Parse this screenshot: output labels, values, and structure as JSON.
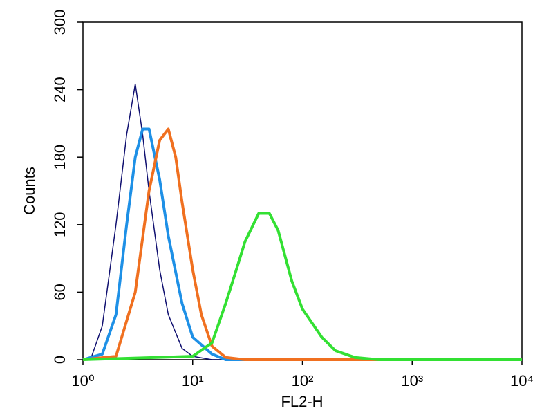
{
  "chart_data": {
    "type": "line",
    "x_label": "FL2-H",
    "y_label": "Counts",
    "log_x": true,
    "xlim": [
      1,
      10000
    ],
    "xticks": [
      {
        "value": 1,
        "label": "10⁰"
      },
      {
        "value": 10,
        "label": "10¹"
      },
      {
        "value": 100,
        "label": "10²"
      },
      {
        "value": 1000,
        "label": "10³"
      },
      {
        "value": 10000,
        "label": "10⁴"
      }
    ],
    "ylim": [
      0,
      300
    ],
    "yticks": [
      0,
      60,
      120,
      180,
      240,
      300
    ],
    "series": [
      {
        "color": "#101070",
        "width": 1.5,
        "x": [
          1,
          1.2,
          1.5,
          2,
          2.5,
          3,
          3.5,
          4,
          5,
          6,
          8,
          10,
          15,
          10000
        ],
        "values": [
          0,
          3,
          30,
          120,
          200,
          245,
          200,
          150,
          80,
          40,
          10,
          3,
          0,
          0
        ]
      },
      {
        "color": "#1e90e6",
        "width": 4,
        "x": [
          1,
          1.5,
          2,
          2.5,
          3,
          3.5,
          4,
          5,
          6,
          8,
          10,
          15,
          20,
          10000
        ],
        "values": [
          0,
          5,
          40,
          120,
          180,
          205,
          205,
          160,
          110,
          50,
          20,
          5,
          0,
          0
        ]
      },
      {
        "color": "#f07020",
        "width": 4,
        "x": [
          1,
          2,
          3,
          4,
          5,
          6,
          7,
          8,
          10,
          12,
          15,
          20,
          30,
          10000
        ],
        "values": [
          0,
          3,
          60,
          150,
          195,
          205,
          180,
          140,
          80,
          40,
          12,
          2,
          0,
          0
        ]
      },
      {
        "color": "#33e033",
        "width": 4,
        "x": [
          1,
          10,
          15,
          20,
          25,
          30,
          40,
          50,
          60,
          80,
          100,
          150,
          200,
          300,
          500,
          10000
        ],
        "values": [
          0,
          3,
          15,
          50,
          80,
          105,
          130,
          130,
          115,
          70,
          45,
          20,
          8,
          2,
          0,
          0
        ]
      }
    ]
  }
}
